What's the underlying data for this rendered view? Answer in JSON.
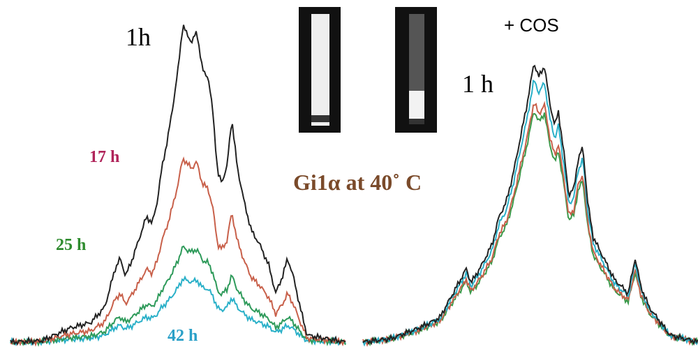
{
  "left_panel": {
    "time_labels": [
      "1h",
      "17 h",
      "25 h",
      "42 h"
    ]
  },
  "right_panel": {
    "treatment": "+ COS",
    "time_label": "1 h"
  },
  "caption": "Gi1α at 40˚ C"
}
